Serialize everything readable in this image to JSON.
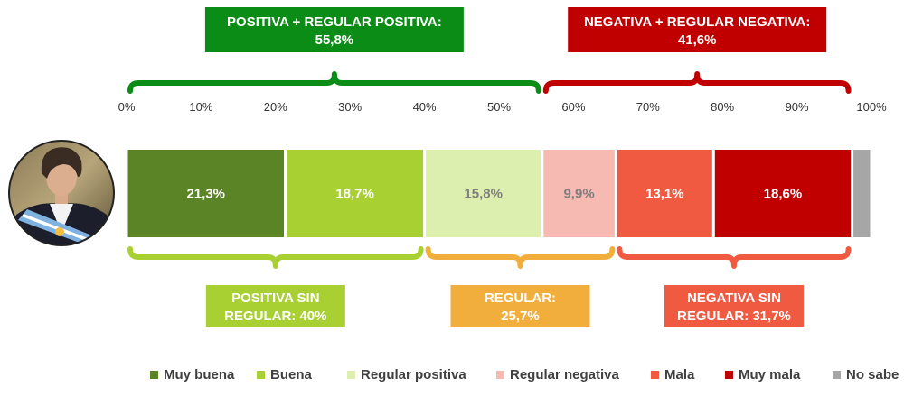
{
  "chart_data": {
    "type": "bar",
    "orientation": "horizontal-stacked",
    "axis_ticks": [
      "0%",
      "10%",
      "20%",
      "30%",
      "40%",
      "50%",
      "60%",
      "70%",
      "80%",
      "90%",
      "100%"
    ],
    "xlim": [
      0,
      100
    ],
    "grid": false,
    "legend_position": "bottom",
    "series": [
      {
        "name": "Muy buena",
        "value": 21.3,
        "label": "21,3%",
        "color": "#5b8427",
        "label_color": "#ffffff"
      },
      {
        "name": "Buena",
        "value": 18.7,
        "label": "18,7%",
        "color": "#a9d033",
        "label_color": "#ffffff"
      },
      {
        "name": "Regular positiva",
        "value": 15.8,
        "label": "15,8%",
        "color": "#dcefae",
        "label_color": "#7f7f7f"
      },
      {
        "name": "Regular negativa",
        "value": 9.9,
        "label": "9,9%",
        "color": "#f7bab2",
        "label_color": "#7f7f7f"
      },
      {
        "name": "Mala",
        "value": 13.1,
        "label": "13,1%",
        "color": "#ef5a41",
        "label_color": "#ffffff"
      },
      {
        "name": "Muy mala",
        "value": 18.6,
        "label": "18,6%",
        "color": "#c00000",
        "label_color": "#ffffff"
      },
      {
        "name": "No sabe",
        "value": 2.6,
        "label": "",
        "color": "#a6a6a6",
        "label_color": "#ffffff"
      }
    ],
    "groups_top": [
      {
        "line1": "POSITIVA + REGULAR POSITIVA:",
        "line2": "55,8%",
        "value": 55.8,
        "start": 0,
        "end": 55.8,
        "color": "#0b8c16"
      },
      {
        "line1": "NEGATIVA + REGULAR NEGATIVA:",
        "line2": "41,6%",
        "value": 41.6,
        "start": 55.8,
        "end": 97.4,
        "color": "#c00000"
      }
    ],
    "groups_bottom": [
      {
        "line1": "POSITIVA SIN",
        "line2": "REGULAR: 40%",
        "value": 40,
        "start": 0,
        "end": 40,
        "color": "#a9d033"
      },
      {
        "line1": "REGULAR:",
        "line2": "25,7%",
        "value": 25.7,
        "start": 40,
        "end": 65.7,
        "color": "#f2ae3c"
      },
      {
        "line1": "NEGATIVA SIN",
        "line2": "REGULAR: 31,7%",
        "value": 31.7,
        "start": 65.7,
        "end": 97.4,
        "color": "#ef5a41"
      }
    ]
  }
}
